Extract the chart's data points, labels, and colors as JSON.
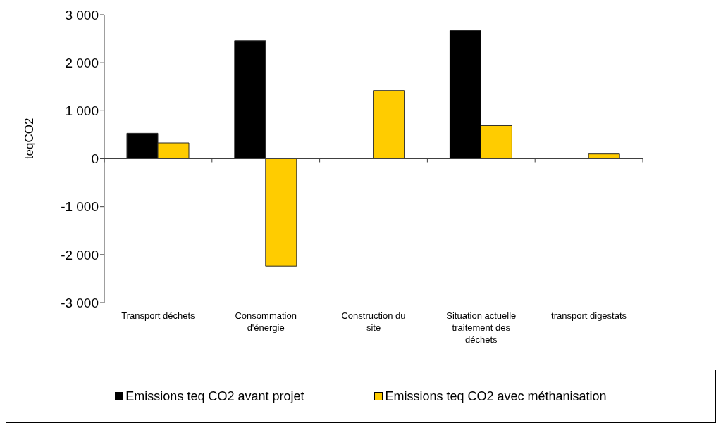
{
  "chart_data": {
    "type": "bar",
    "ylabel": "teqCO2",
    "categories": [
      "Transport déchets",
      "Consommation d'énergie",
      "Construction du site",
      "Situation actuelle traitement des déchets",
      "transport digestats"
    ],
    "series": [
      {
        "name": "Emissions teq CO2 avant projet",
        "color": "#000000",
        "values": [
          530,
          2460,
          null,
          2670,
          null
        ]
      },
      {
        "name": "Emissions teq CO2 avec méthanisation",
        "color": "#ffcc00",
        "values": [
          330,
          -2240,
          1420,
          690,
          100
        ]
      }
    ],
    "ylim": [
      -3000,
      3000
    ],
    "yticks": [
      {
        "value": -3000,
        "label": "-3 000"
      },
      {
        "value": -2000,
        "label": "-2 000"
      },
      {
        "value": -1000,
        "label": "-1 000"
      },
      0,
      {
        "value": 1000,
        "label": "1 000"
      },
      {
        "value": 2000,
        "label": "2 000"
      },
      {
        "value": 3000,
        "label": "3 000"
      }
    ],
    "legend": "bottom",
    "ref_lines": [
      {
        "axis": "y",
        "value": 0,
        "color": "#404040"
      }
    ]
  }
}
